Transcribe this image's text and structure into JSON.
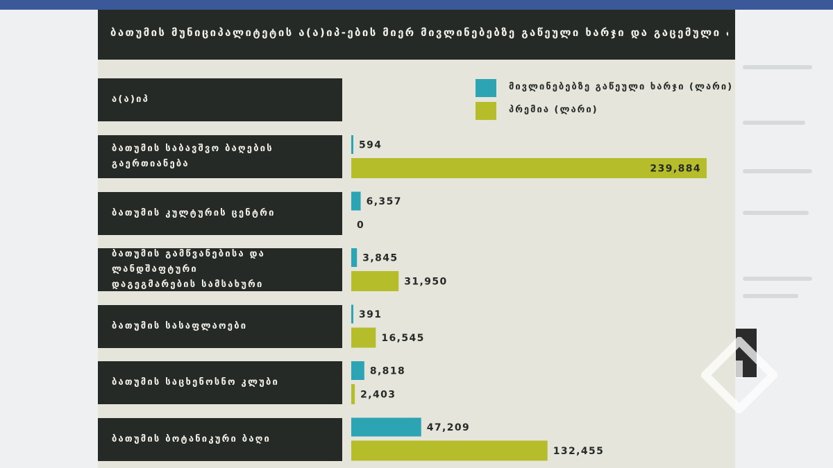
{
  "title": "ბათუმის მუნიციპალიტეტის ა(ა)იპ-ების მიერ მივლინებებზე გაწეული ხარჯი და გაცემული პრემია",
  "header_label": "ა(ა)იპ",
  "colors": {
    "expense": "#2ca4b4",
    "bonus": "#b5bd2a",
    "dark": "#262a27",
    "panel": "#e6e5dc"
  },
  "legend": [
    {
      "label": "მივლინებებზე გაწეული ხარჯი (ლარი)",
      "color": "#2ca4b4"
    },
    {
      "label": "პრემია (ლარი)",
      "color": "#b5bd2a"
    }
  ],
  "chart_data": {
    "type": "bar",
    "orientation": "horizontal",
    "title": "ბათუმის მუნიციპალიტეტის ა(ა)იპ-ების მიერ მივლინებებზე გაწეული ხარჯი და გაცემული პრემია",
    "categories": [
      "ბათუმის საბავშვო ბაღების გაერთიანება",
      "ბათუმის კულტურის ცენტრი",
      "ბათუმის გამწვანებისა და ლანდშაფტური დაგეგმარების სამსახური",
      "ბათუმის სასაფლაოები",
      "ბათუმის საცხენოსნო კლუბი",
      "ბათუმის ბოტანიკური ბაღი"
    ],
    "series": [
      {
        "name": "მივლინებებზე გაწეული ხარჯი (ლარი)",
        "values": [
          594,
          6357,
          3845,
          391,
          8818,
          47209
        ]
      },
      {
        "name": "პრემია (ლარი)",
        "values": [
          239884,
          0,
          31950,
          16545,
          2403,
          132455
        ]
      }
    ],
    "value_labels": [
      [
        "594",
        "239,884"
      ],
      [
        "6,357",
        "0"
      ],
      [
        "3,845",
        "31,950"
      ],
      [
        "391",
        "16,545"
      ],
      [
        "8,818",
        "2,403"
      ],
      [
        "47,209",
        "132,455"
      ]
    ],
    "legend_position": "top-right",
    "grid": false
  },
  "rows": [
    {
      "lines": [
        "ბათუმის საბავშვო ბაღების",
        "გაერთიანება"
      ]
    },
    {
      "lines": [
        "ბათუმის კულტურის ცენტრი"
      ]
    },
    {
      "lines": [
        "ბათუმის გამწვანებისა და ლანდშაფტური",
        "დაგეგმარების სამსახური"
      ]
    },
    {
      "lines": [
        "ბათუმის სასაფლაოები"
      ]
    },
    {
      "lines": [
        "ბათუმის საცხენოსნო კლუბი"
      ]
    },
    {
      "lines": [
        "ბათუმის ბოტანიკური ბაღი"
      ]
    }
  ]
}
